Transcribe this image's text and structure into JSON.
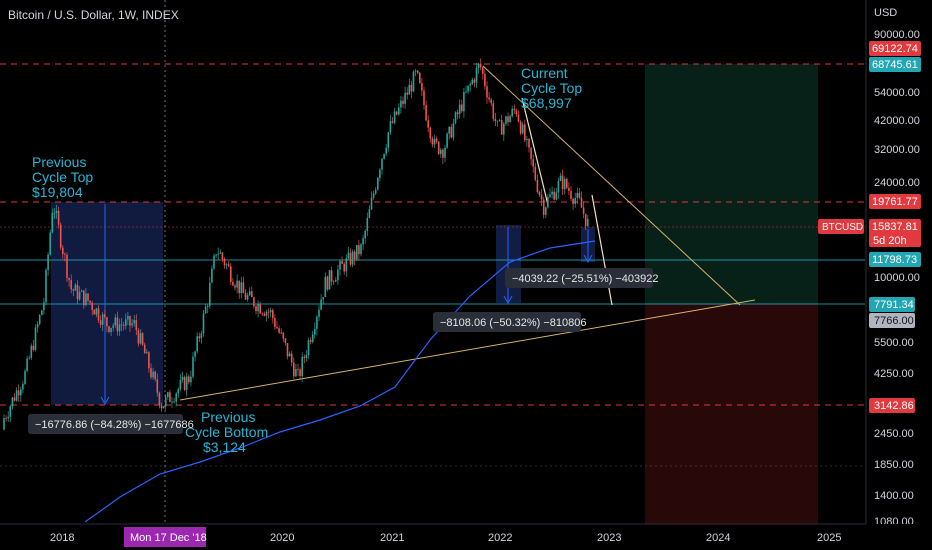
{
  "header": {
    "title": "Bitcoin / U.S. Dollar, 1W, INDEX"
  },
  "axis": {
    "currency": "USD",
    "y_ticks": [
      "90000.00",
      "54000.00",
      "42000.00",
      "32000.00",
      "24000.00",
      "10000.00",
      "5500.00",
      "4250.00",
      "2450.00",
      "1850.00",
      "1400.00",
      "1080.00"
    ],
    "x_ticks": [
      "2018",
      "2020",
      "2021",
      "2022",
      "2023",
      "2024",
      "2025"
    ],
    "crosshair_date": "Mon 17 Dec '18"
  },
  "price_tags": [
    {
      "label": "69122.74",
      "color": "#e0393e"
    },
    {
      "label": "68745.61",
      "color": "#22a6b3"
    },
    {
      "label": "19761.77",
      "color": "#e0393e"
    },
    {
      "label": "15837.81",
      "color": "#e0393e"
    },
    {
      "label": "11798.73",
      "color": "#22a6b3"
    },
    {
      "label": "7791.34",
      "color": "#22a6b3"
    },
    {
      "label": "7766.00",
      "color": "#b2b5be"
    },
    {
      "label": "3142.86",
      "color": "#e0393e"
    }
  ],
  "symbol_tag": {
    "symbol": "BTCUSD",
    "countdown": "5d 20h"
  },
  "annotations": {
    "prev_top": [
      "Previous",
      "Cycle Top",
      "$19,804"
    ],
    "current_top": [
      "Current",
      "Cycle Top",
      "$68,997"
    ],
    "prev_bottom": [
      "Previous",
      "Cycle Bottom",
      "$3,124"
    ]
  },
  "measures": [
    {
      "text": "−16776.86 (−84.28%) −1677686"
    },
    {
      "text": "−4039.22 (−25.51%) −403922"
    },
    {
      "text": "−8108.06 (−50.32%) −810806"
    }
  ],
  "colors": {
    "up": "#26a69a",
    "down": "#ef5350",
    "ma": "#2962ff",
    "trend": "#d4b46a",
    "cyan": "#22c1d6"
  },
  "chart_data": {
    "type": "candlestick",
    "series": [
      {
        "name": "BTCUSD weekly",
        "points": [
          [
            "2017-06",
            2500
          ],
          [
            "2017-09",
            4200
          ],
          [
            "2017-11",
            8000
          ],
          [
            "2017-12",
            19804
          ],
          [
            "2018-02",
            9000
          ],
          [
            "2018-04",
            8000
          ],
          [
            "2018-06",
            6500
          ],
          [
            "2018-09",
            6500
          ],
          [
            "2018-11",
            4000
          ],
          [
            "2018-12",
            3124
          ],
          [
            "2019-03",
            4000
          ],
          [
            "2019-05",
            8000
          ],
          [
            "2019-06",
            13000
          ],
          [
            "2019-09",
            8500
          ],
          [
            "2019-12",
            7200
          ],
          [
            "2020-03",
            4000
          ],
          [
            "2020-06",
            9500
          ],
          [
            "2020-10",
            13000
          ],
          [
            "2020-12",
            28000
          ],
          [
            "2021-01",
            38000
          ],
          [
            "2021-04",
            63000
          ],
          [
            "2021-06",
            33000
          ],
          [
            "2021-07",
            32000
          ],
          [
            "2021-09",
            48000
          ],
          [
            "2021-11",
            68997
          ],
          [
            "2022-01",
            38000
          ],
          [
            "2022-03",
            46000
          ],
          [
            "2022-06",
            19000
          ],
          [
            "2022-08",
            24000
          ],
          [
            "2022-10",
            19500
          ],
          [
            "2022-11",
            15837.81
          ]
        ]
      }
    ],
    "ma": {
      "name": "200W MA"
    },
    "yscale": "log",
    "ylim": [
      1080,
      90000
    ]
  }
}
